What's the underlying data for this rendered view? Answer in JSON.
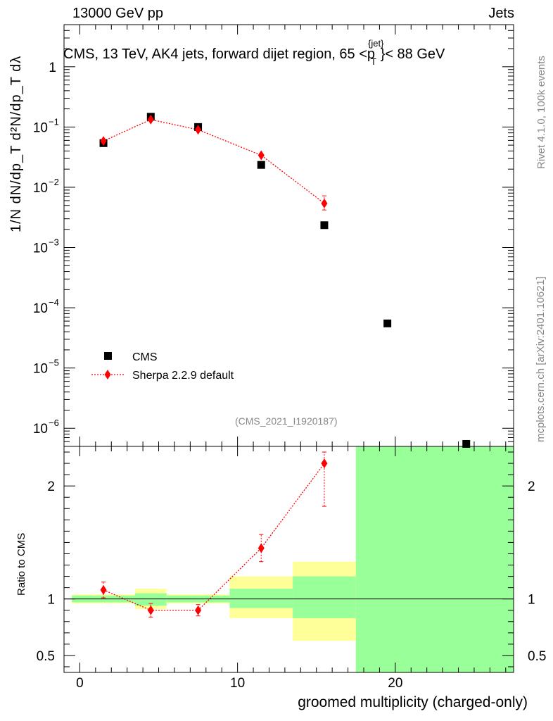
{
  "header": {
    "energy_label": "13000 GeV pp",
    "category_label": "Jets"
  },
  "side_labels": {
    "rivet_version": "Rivet 4.1.0,  100k events",
    "source": "mcplots.cern.ch [arXiv:2401.10621]"
  },
  "chart_data": {
    "type": "scatter",
    "title": "CMS, 13 TeV, AK4 jets, forward dijet region, 65 <p",
    "title_sub": "T",
    "title_sup": "{jet}",
    "title_end": "}< 88 GeV",
    "analysis_tag": "(CMS_2021_I1920187)",
    "xlabel": "groomed multiplicity (charged-only)",
    "ylabel": "1/N dN/dp_T d²N/dp_T dλ",
    "ylabel_ratio": "Ratio to CMS",
    "xlim": [
      -1,
      27.5
    ],
    "ylim": [
      5e-07,
      5
    ],
    "yscale": "log",
    "ratio_ylim": [
      0.35,
      2.35
    ],
    "x_ticks": [
      0,
      10,
      20
    ],
    "x_tick_labels": [
      "0",
      "10",
      "20"
    ],
    "y_ticks_main": [
      1e-06,
      1e-05,
      0.0001,
      0.001,
      0.01,
      0.1,
      1
    ],
    "y_tick_labels_main": [
      {
        "base": "10",
        "exp": "−6"
      },
      {
        "base": "10",
        "exp": "−5"
      },
      {
        "base": "10",
        "exp": "−4"
      },
      {
        "base": "10",
        "exp": "−3"
      },
      {
        "base": "10",
        "exp": "−2"
      },
      {
        "base": "10",
        "exp": "−1"
      },
      {
        "base": "1",
        "exp": ""
      }
    ],
    "ratio_ticks": [
      0.5,
      1,
      2
    ],
    "ratio_tick_labels": [
      "0.5",
      "1",
      "2"
    ],
    "legend": [
      {
        "name": "CMS",
        "marker": "square",
        "color": "#000000"
      },
      {
        "name": "Sherpa 2.2.9 default",
        "marker": "diamond",
        "color": "#ff0000"
      }
    ],
    "series": [
      {
        "name": "CMS",
        "x": [
          1.5,
          4.5,
          7.5,
          11.5,
          15.5,
          19.5,
          24.5
        ],
        "values": [
          0.054,
          0.148,
          0.1,
          0.0235,
          0.00235,
          5.5e-05,
          5.5e-07
        ]
      },
      {
        "name": "Sherpa 2.2.9 default",
        "x": [
          1.5,
          4.5,
          7.5,
          11.5,
          15.5
        ],
        "values": [
          0.0585,
          0.133,
          0.09,
          0.034,
          0.0054
        ],
        "err_lo": [
          0.0027,
          0.004,
          0.003,
          0.002,
          0.0012
        ],
        "err_hi": [
          0.0027,
          0.004,
          0.003,
          0.002,
          0.0018
        ]
      }
    ],
    "ratio": {
      "x": [
        1.5,
        4.5,
        7.5,
        11.5,
        15.5
      ],
      "values": [
        1.08,
        0.9,
        0.9,
        1.45,
        2.3
      ],
      "err_lo": [
        0.07,
        0.06,
        0.05,
        0.12,
        0.38
      ],
      "err_hi": [
        0.07,
        0.06,
        0.05,
        0.12,
        0.1
      ]
    },
    "bands": [
      {
        "xlo": -0.5,
        "xhi": 3.5,
        "yellow": [
          0.96,
          1.04
        ],
        "green": [
          0.97,
          1.03
        ]
      },
      {
        "xlo": 3.5,
        "xhi": 5.5,
        "yellow": [
          0.91,
          1.09
        ],
        "green": [
          0.94,
          1.05
        ]
      },
      {
        "xlo": 5.5,
        "xhi": 9.5,
        "yellow": [
          0.96,
          1.04
        ],
        "green": [
          0.97,
          1.03
        ]
      },
      {
        "xlo": 9.5,
        "xhi": 13.5,
        "yellow": [
          0.83,
          1.2
        ],
        "green": [
          0.92,
          1.09
        ]
      },
      {
        "xlo": 13.5,
        "xhi": 17.5,
        "yellow": [
          0.63,
          1.33
        ],
        "green": [
          0.83,
          1.2
        ]
      },
      {
        "xlo": 17.5,
        "xhi": 27.5,
        "yellow": [
          0.35,
          2.35
        ],
        "green": [
          0.35,
          2.35
        ]
      }
    ],
    "colors": {
      "yellow_band": "#ffff99",
      "green_band": "#99ff99",
      "sherpa": "#ff0000",
      "cms": "#000000"
    }
  }
}
